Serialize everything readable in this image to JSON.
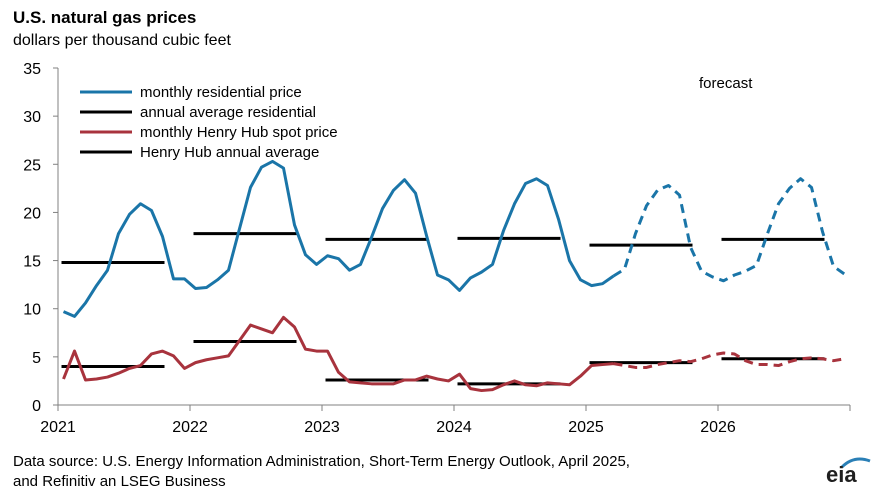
{
  "title": "U.S. natural gas prices",
  "subtitle": "dollars per thousand  cubic feet",
  "source_line1": "Data source: U.S. Energy Information Administration, Short-Term Energy Outlook, April 2025,",
  "source_line2": "and Refinitiv an LSEG Business",
  "logo_text": "eia",
  "chart_data": {
    "type": "line",
    "title": "U.S. natural gas prices",
    "ylabel": "dollars per thousand  cubic feet",
    "ylim": [
      0,
      35
    ],
    "yticks": [
      "0",
      "5",
      "10",
      "15",
      "20",
      "25",
      "30",
      "35"
    ],
    "xticks": [
      "2021",
      "2022",
      "2023",
      "2024",
      "2025",
      "2026"
    ],
    "forecast_label": "forecast",
    "forecast_start_month_index": 50,
    "colors": {
      "residential": "#1a75a8",
      "henry_hub": "#a8333d",
      "average": "#000000"
    },
    "legend": [
      {
        "label": "monthly residential price",
        "color": "#1a75a8"
      },
      {
        "label": "annual average residential",
        "color": "#000000"
      },
      {
        "label": "monthly Henry Hub spot price",
        "color": "#a8333d"
      },
      {
        "label": "Henry Hub annual average",
        "color": "#000000"
      }
    ],
    "series": [
      {
        "name": "monthly residential price",
        "values": [
          9.7,
          9.2,
          10.6,
          12.4,
          14.0,
          17.8,
          19.8,
          20.9,
          20.2,
          17.5,
          13.1,
          13.1,
          12.1,
          12.2,
          13.0,
          14.0,
          18.3,
          22.6,
          24.7,
          25.3,
          24.6,
          18.7,
          15.6,
          14.6,
          15.5,
          15.2,
          14.0,
          14.6,
          17.4,
          20.4,
          22.3,
          23.4,
          22.0,
          17.6,
          13.5,
          13.0,
          11.9,
          13.2,
          13.8,
          14.6,
          18.1,
          20.9,
          23.0,
          23.5,
          22.8,
          19.3,
          15.0,
          13.0,
          12.4,
          12.6,
          13.4,
          14.1,
          17.8,
          20.7,
          22.3,
          22.8,
          21.8,
          16.4,
          13.9,
          13.3,
          12.9,
          13.5,
          13.9,
          14.5,
          17.8,
          20.9,
          22.5,
          23.5,
          22.6,
          18.0,
          14.4,
          13.6
        ]
      },
      {
        "name": "monthly Henry Hub spot price",
        "values": [
          2.7,
          5.6,
          2.6,
          2.7,
          2.9,
          3.3,
          3.8,
          4.1,
          5.3,
          5.6,
          5.1,
          3.8,
          4.4,
          4.7,
          4.9,
          5.1,
          6.7,
          8.3,
          7.9,
          7.5,
          9.1,
          8.1,
          5.8,
          5.6,
          5.6,
          3.4,
          2.4,
          2.3,
          2.2,
          2.2,
          2.2,
          2.6,
          2.6,
          3.0,
          2.7,
          2.5,
          3.2,
          1.7,
          1.5,
          1.6,
          2.1,
          2.5,
          2.1,
          2.0,
          2.3,
          2.2,
          2.1,
          3.0,
          4.1,
          4.2,
          4.3,
          4.1,
          3.9,
          3.9,
          4.2,
          4.4,
          4.6,
          4.5,
          4.8,
          5.2,
          5.4,
          5.3,
          4.6,
          4.2,
          4.2,
          4.1,
          4.5,
          4.8,
          4.9,
          4.8,
          4.6,
          4.8
        ]
      }
    ],
    "annual_average_residential": [
      14.8,
      17.8,
      17.2,
      17.3,
      16.6,
      17.2
    ],
    "henry_hub_annual_average": [
      4.0,
      6.6,
      2.6,
      2.2,
      4.4,
      4.8
    ]
  }
}
